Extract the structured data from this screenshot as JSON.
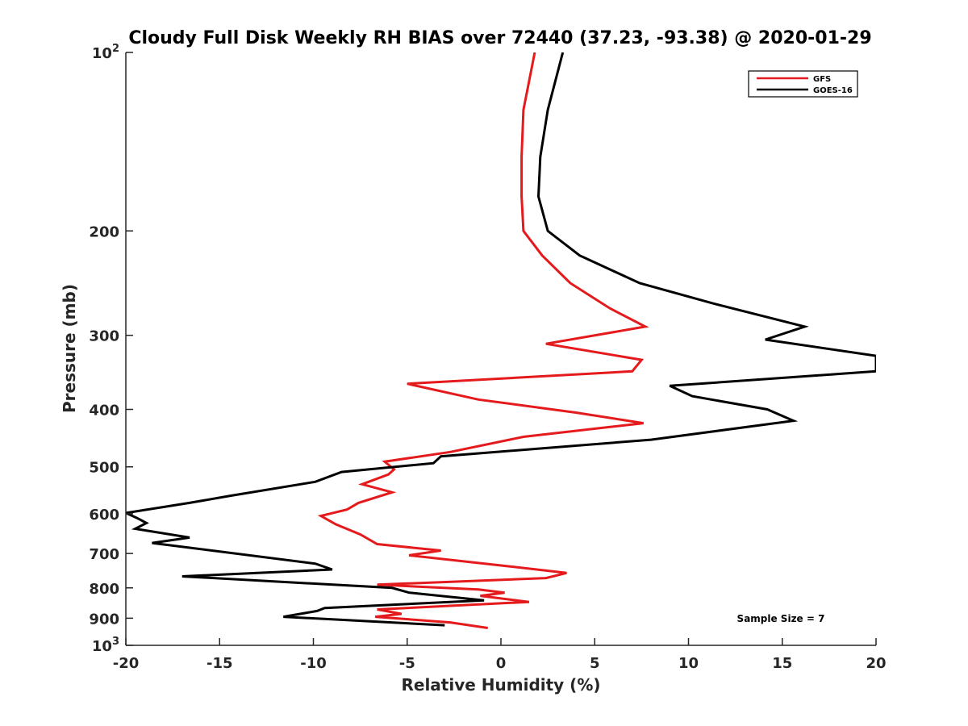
{
  "chart_data": {
    "type": "line",
    "title": "Cloudy Full Disk Weekly RH BIAS over 72440 (37.23, -93.38) @ 2020-01-29",
    "xlabel": "Relative Humidity (%)",
    "ylabel": "Pressure (mb)",
    "xlim": [
      -20,
      20
    ],
    "ylim": [
      100,
      1000
    ],
    "yscale": "log",
    "y_reversed": true,
    "grid": false,
    "legend_position": "top-right",
    "x_ticks": [
      -20,
      -15,
      -10,
      -5,
      0,
      5,
      10,
      15,
      20
    ],
    "x_tick_labels": [
      "-20",
      "-15",
      "-10",
      "-5",
      "0",
      "5",
      "10",
      "15",
      "20"
    ],
    "y_ticks": [
      100,
      200,
      300,
      400,
      500,
      600,
      700,
      800,
      900,
      1000
    ],
    "y_tick_labels": [
      {
        "base": "10",
        "exp": "2"
      },
      {
        "base": "200",
        "exp": ""
      },
      {
        "base": "300",
        "exp": ""
      },
      {
        "base": "400",
        "exp": ""
      },
      {
        "base": "500",
        "exp": ""
      },
      {
        "base": "600",
        "exp": ""
      },
      {
        "base": "700",
        "exp": ""
      },
      {
        "base": "800",
        "exp": ""
      },
      {
        "base": "900",
        "exp": ""
      },
      {
        "base": "10",
        "exp": "3"
      }
    ],
    "annotation": "Sample Size = 7",
    "series": [
      {
        "name": "GFS",
        "color": "#e41a1c",
        "points": [
          [
            1.8,
            100
          ],
          [
            1.2,
            125
          ],
          [
            1.1,
            150
          ],
          [
            1.1,
            175
          ],
          [
            1.2,
            200
          ],
          [
            2.2,
            220
          ],
          [
            3.7,
            245
          ],
          [
            5.8,
            270
          ],
          [
            7.7,
            290
          ],
          [
            2.4,
            310
          ],
          [
            7.5,
            330
          ],
          [
            7.0,
            345
          ],
          [
            -5.0,
            362
          ],
          [
            -1.2,
            385
          ],
          [
            4.0,
            405
          ],
          [
            7.6,
            422
          ],
          [
            1.2,
            445
          ],
          [
            -2.7,
            472
          ],
          [
            -6.2,
            490
          ],
          [
            -5.7,
            505
          ],
          [
            -6.0,
            515
          ],
          [
            -7.4,
            535
          ],
          [
            -5.8,
            552
          ],
          [
            -7.6,
            575
          ],
          [
            -8.2,
            590
          ],
          [
            -9.6,
            605
          ],
          [
            -8.8,
            625
          ],
          [
            -7.5,
            650
          ],
          [
            -6.6,
            675
          ],
          [
            -3.2,
            692
          ],
          [
            -4.9,
            705
          ],
          [
            0.3,
            735
          ],
          [
            3.5,
            755
          ],
          [
            2.4,
            770
          ],
          [
            -6.6,
            790
          ],
          [
            -1.2,
            805
          ],
          [
            0.2,
            815
          ],
          [
            -1.1,
            825
          ],
          [
            1.5,
            845
          ],
          [
            -6.6,
            870
          ],
          [
            -5.3,
            885
          ],
          [
            -6.7,
            895
          ],
          [
            -2.7,
            915
          ],
          [
            -0.7,
            935
          ]
        ]
      },
      {
        "name": "GOES-16",
        "color": "#000000",
        "points": [
          [
            3.3,
            100
          ],
          [
            2.5,
            125
          ],
          [
            2.1,
            150
          ],
          [
            2.0,
            175
          ],
          [
            2.5,
            200
          ],
          [
            4.2,
            220
          ],
          [
            7.4,
            245
          ],
          [
            11.3,
            265
          ],
          [
            16.2,
            290
          ],
          [
            14.1,
            305
          ],
          [
            20.0,
            325
          ],
          [
            20.0,
            345
          ],
          [
            9.0,
            365
          ],
          [
            10.2,
            380
          ],
          [
            14.2,
            400
          ],
          [
            15.6,
            418
          ],
          [
            8.0,
            450
          ],
          [
            -3.2,
            480
          ],
          [
            -3.6,
            493
          ],
          [
            -8.5,
            510
          ],
          [
            -9.9,
            530
          ],
          [
            -14.5,
            560
          ],
          [
            -16.6,
            575
          ],
          [
            -20.0,
            598
          ],
          [
            -19.4,
            610
          ],
          [
            -18.9,
            622
          ],
          [
            -19.5,
            636
          ],
          [
            -16.6,
            658
          ],
          [
            -18.6,
            672
          ],
          [
            -9.9,
            728
          ],
          [
            -9.0,
            745
          ],
          [
            -17.0,
            765
          ],
          [
            -5.8,
            800
          ],
          [
            -4.9,
            815
          ],
          [
            -0.9,
            840
          ],
          [
            -9.4,
            865
          ],
          [
            -9.8,
            875
          ],
          [
            -11.6,
            895
          ],
          [
            -3.0,
            925
          ]
        ]
      }
    ]
  }
}
